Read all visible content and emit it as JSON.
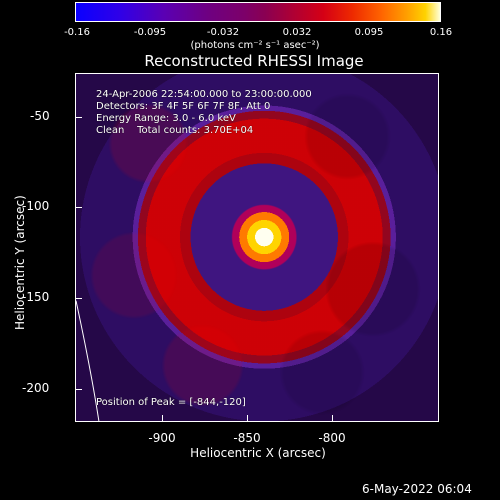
{
  "colorbar": {
    "ticks": [
      "-0.16",
      "-0.095",
      "-0.032",
      "0.032",
      "0.095",
      "0.16"
    ],
    "units": "(photons cm⁻² s⁻¹ asec⁻²)"
  },
  "title": "Reconstructed RHESSI Image",
  "annotations": {
    "time_range": "24-Apr-2006 22:54:00.000 to 23:00:00.000",
    "detectors": "Detectors: 3F 4F 5F 6F 7F 8F, Att 0",
    "energy_range": "Energy Range: 3.0 - 6.0 keV",
    "clean_counts": "Clean    Total counts: 3.70E+04",
    "peak_position": "Position of Peak = [-844,-120]"
  },
  "axes": {
    "x_label": "Heliocentric X (arcsec)",
    "y_label": "Heliocentric Y (arcsec)",
    "x_ticks": [
      "-900",
      "-850",
      "-800"
    ],
    "y_ticks": [
      "-50",
      "-100",
      "-150",
      "-200"
    ]
  },
  "footer": {
    "date_time": "6-May-2022 06:04"
  },
  "colors": {
    "background": "#000000",
    "text": "#ffffff"
  }
}
